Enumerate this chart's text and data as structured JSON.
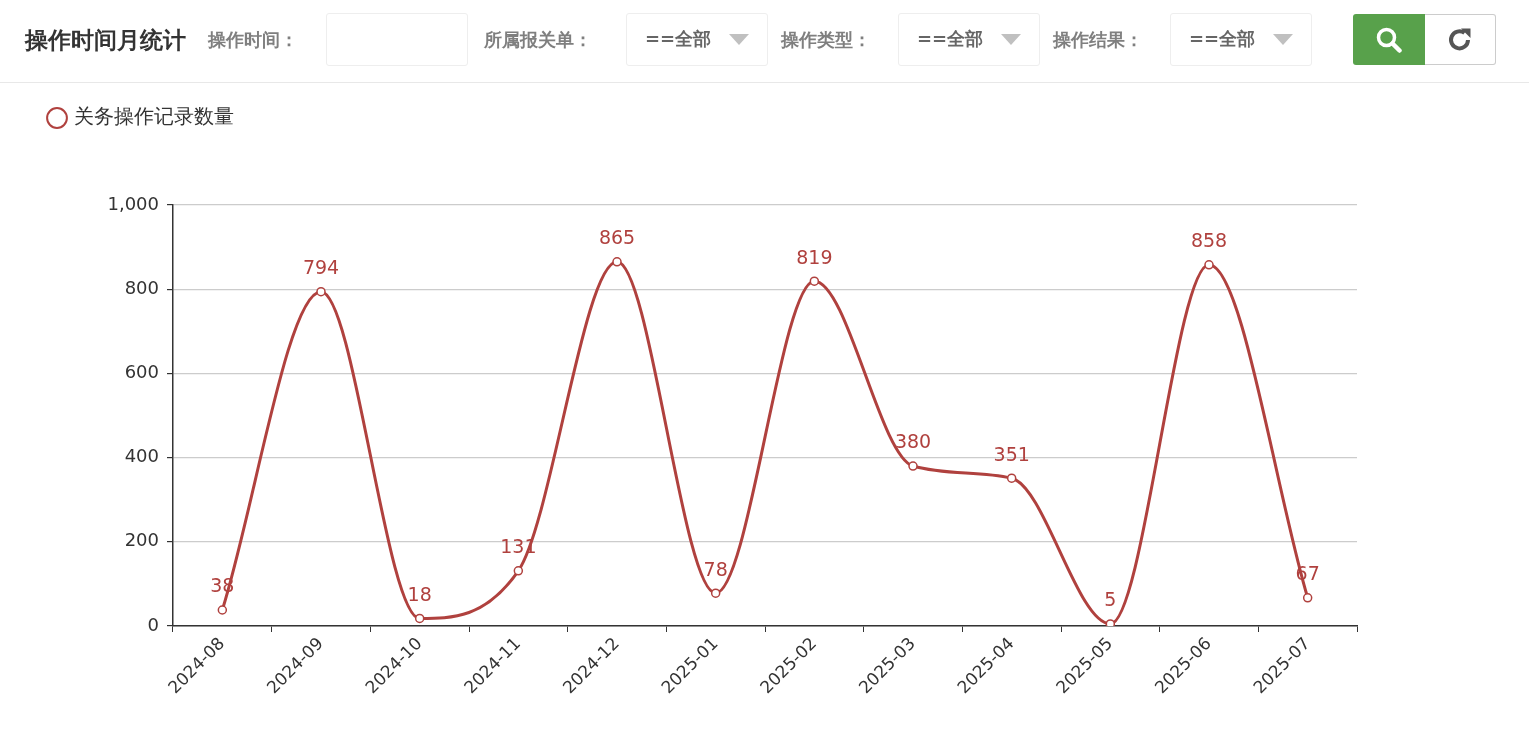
{
  "chart_data": {
    "type": "line",
    "title": "操作时间月统计",
    "annotations": [
      "操作时间：",
      "所属报关单：",
      "==全部",
      "操作类型：",
      "==全部",
      "操作结果：",
      "==全部"
    ],
    "categories": [
      "2024-08",
      "2024-09",
      "2024-10",
      "2024-11",
      "2024-12",
      "2025-01",
      "2025-02",
      "2025-03",
      "2025-04",
      "2025-05",
      "2025-06",
      "2025-07"
    ],
    "series": [
      {
        "name": "关务操作记录数量",
        "color": "#b0413e",
        "values": [
          38,
          794,
          18,
          131,
          865,
          78,
          819,
          380,
          351,
          5,
          858,
          67
        ]
      }
    ],
    "ylim": [
      0,
      1000
    ],
    "yticks": [
      0,
      200,
      400,
      600,
      800,
      {
        "value": 1000,
        "label": "1,000"
      }
    ],
    "grid": "y",
    "legend": "top left",
    "marker": "circle",
    "line_style": "solid",
    "data_labels": true
  }
}
